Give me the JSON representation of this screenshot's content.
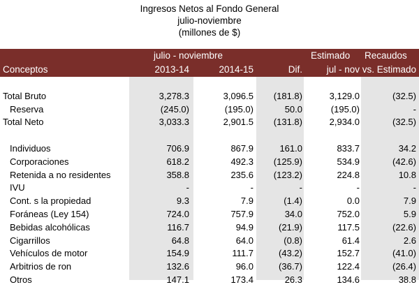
{
  "title": {
    "line1": "Ingresos Netos al Fondo General",
    "line2": "julio-noviembre",
    "line3": "(millones de $)"
  },
  "header": {
    "group_period": "julio - noviembre",
    "estimado": "Estimado",
    "recaudos": "Recaudos",
    "conceptos": "Conceptos",
    "col1": "2013-14",
    "col2": "2014-15",
    "dif": "Dif.",
    "jul_nov": "jul - nov",
    "vs_estimado": "vs. Estimado"
  },
  "colors": {
    "header_bg": "#7a2e2a",
    "shade_bg": "#e5e5e5"
  },
  "rows": [
    {
      "label": "",
      "indent": false,
      "values": [
        "",
        "",
        "",
        "",
        ""
      ]
    },
    {
      "label": "Total Bruto",
      "indent": false,
      "values": [
        "3,278.3",
        "3,096.5",
        "(181.8)",
        "3,129.0",
        "(32.5)"
      ]
    },
    {
      "label": "Reserva",
      "indent": true,
      "values": [
        "(245.0)",
        "(195.0)",
        "50.0",
        "(195.0)",
        "-"
      ]
    },
    {
      "label": "Total Neto",
      "indent": false,
      "values": [
        "3,033.3",
        "2,901.5",
        "(131.8)",
        "2,934.0",
        "(32.5)"
      ]
    },
    {
      "label": "",
      "indent": false,
      "values": [
        "",
        "",
        "",
        "",
        ""
      ]
    },
    {
      "label": "Individuos",
      "indent": true,
      "values": [
        "706.9",
        "867.9",
        "161.0",
        "833.7",
        "34.2"
      ]
    },
    {
      "label": "Corporaciones",
      "indent": true,
      "values": [
        "618.2",
        "492.3",
        "(125.9)",
        "534.9",
        "(42.6)"
      ]
    },
    {
      "label": "Retenida a no residentes",
      "indent": true,
      "values": [
        "358.8",
        "235.6",
        "(123.2)",
        "224.8",
        "10.8"
      ]
    },
    {
      "label": "IVU",
      "indent": true,
      "values": [
        "-",
        "-",
        "-",
        "-",
        "-"
      ]
    },
    {
      "label": "Cont. s la propiedad",
      "indent": true,
      "values": [
        "9.3",
        "7.9",
        "(1.4)",
        "0.0",
        "7.9"
      ]
    },
    {
      "label": "Foráneas (Ley 154)",
      "indent": true,
      "values": [
        "724.0",
        "757.9",
        "34.0",
        "752.0",
        "5.9"
      ]
    },
    {
      "label": "Bebidas alcohólicas",
      "indent": true,
      "values": [
        "116.7",
        "94.9",
        "(21.9)",
        "117.5",
        "(22.6)"
      ]
    },
    {
      "label": "Cigarrillos",
      "indent": true,
      "values": [
        "64.8",
        "64.0",
        "(0.8)",
        "61.4",
        "2.6"
      ]
    },
    {
      "label": "Vehículos de motor",
      "indent": true,
      "values": [
        "154.9",
        "111.7",
        "(43.2)",
        "152.7",
        "(41.0)"
      ]
    },
    {
      "label": "Arbitrios de ron",
      "indent": true,
      "values": [
        "132.6",
        "96.0",
        "(36.7)",
        "122.4",
        "(26.4)"
      ]
    },
    {
      "label": "Otros",
      "indent": true,
      "values": [
        "147.1",
        "173.4",
        "26.3",
        "134.6",
        "38.8"
      ]
    }
  ]
}
